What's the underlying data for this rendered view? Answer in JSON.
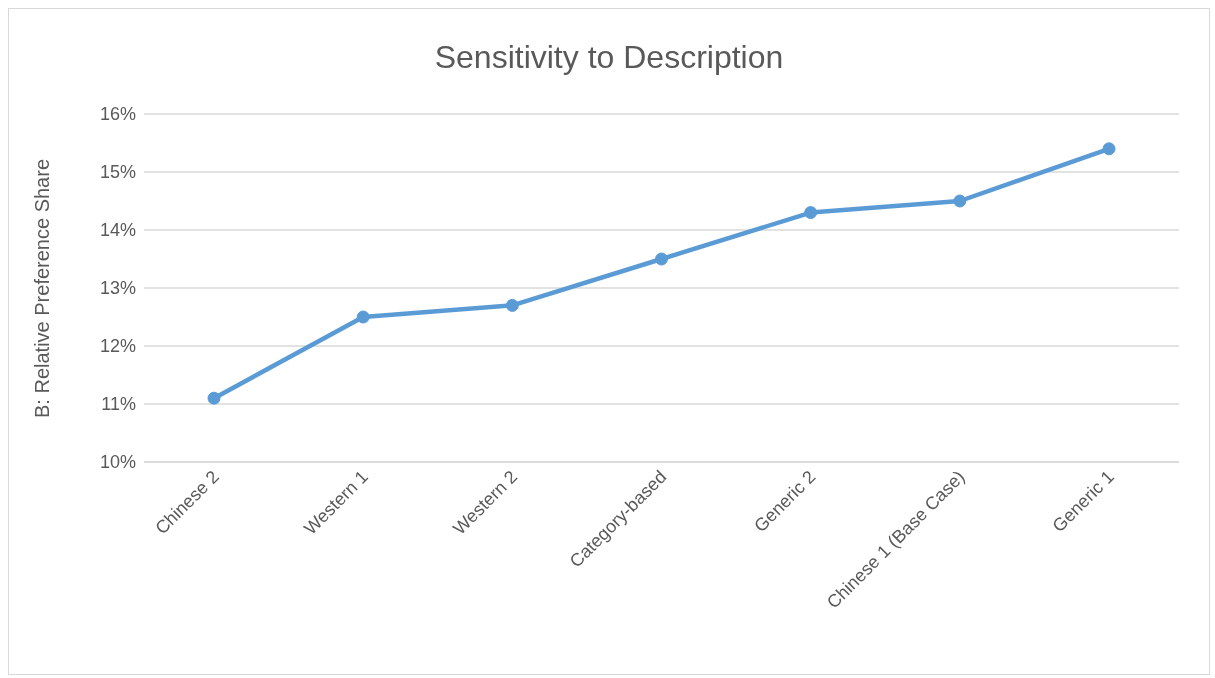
{
  "chart_data": {
    "type": "line",
    "title": "Sensitivity to Description",
    "ylabel": "B: Relative Preference Share",
    "categories": [
      "Chinese 2",
      "Western 1",
      "Western 2",
      "Category-based",
      "Generic 2",
      "Chinese 1 (Base Case)",
      "Generic 1"
    ],
    "series": [
      {
        "color": "#5b9bd5",
        "values": [
          11.1,
          12.5,
          12.7,
          13.5,
          14.3,
          14.5,
          15.4
        ]
      }
    ],
    "ylim": [
      10,
      16
    ],
    "yticks": [
      {
        "value": 10,
        "label": "10%"
      },
      {
        "value": 11,
        "label": "11%"
      },
      {
        "value": 12,
        "label": "12%"
      },
      {
        "value": 13,
        "label": "13%"
      },
      {
        "value": 14,
        "label": "14%"
      },
      {
        "value": 15,
        "label": "15%"
      },
      {
        "value": 16,
        "label": "16%"
      }
    ],
    "grid": "y",
    "marker": "circle",
    "line_style": "solid"
  }
}
